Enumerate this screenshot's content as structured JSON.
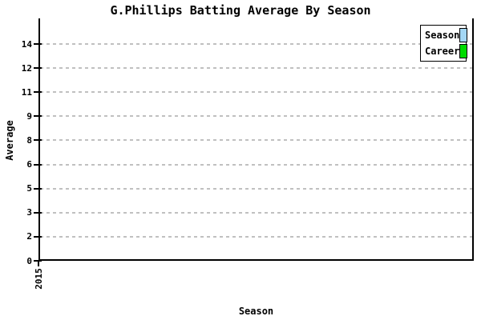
{
  "title": "G.Phillips Batting Average By Season",
  "axes": {
    "ylabel": "Average",
    "xlabel": "Season",
    "x_tick_label": "2015"
  },
  "legend": {
    "items": [
      {
        "label": "Season",
        "color": "#A3D7F5"
      },
      {
        "label": "Career",
        "color": "#00DC00"
      }
    ]
  },
  "colors": {
    "axis": "#000000",
    "gridline": "#C0C0C0",
    "background": "#FFFFFF",
    "season_series": "#A3D7F5",
    "career_series": "#00DC00"
  },
  "chart_data": {
    "type": "bar",
    "title": "G.Phillips Batting Average By Season",
    "xlabel": "Season",
    "ylabel": "Average",
    "categories": [
      "2015"
    ],
    "series": [
      {
        "name": "Season",
        "color": "#A3D7F5",
        "values": [
          0
        ]
      },
      {
        "name": "Career",
        "color": "#00DC00",
        "values": [
          0
        ]
      }
    ],
    "ylim": [
      0,
      15.5
    ],
    "ytick_labels_bottom_to_top": [
      "0",
      "2",
      "3",
      "5",
      "6",
      "8",
      "9",
      "11",
      "12",
      "14"
    ],
    "grid": "horizontal-dashed",
    "legend_position": "top-right",
    "legend_entries": [
      "Season",
      "Career"
    ]
  }
}
